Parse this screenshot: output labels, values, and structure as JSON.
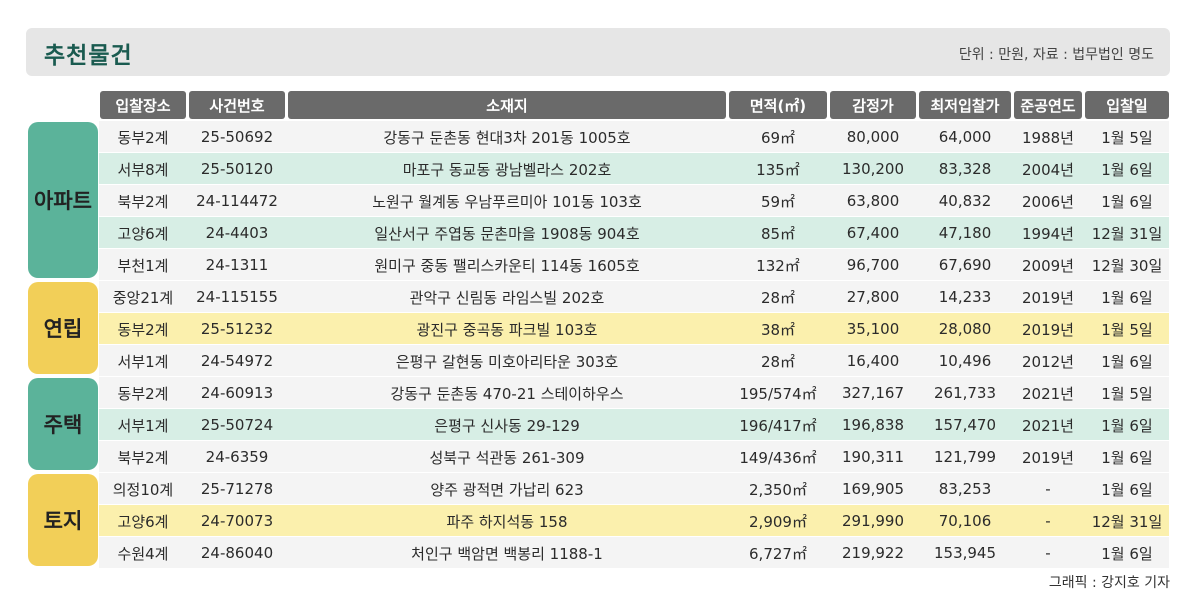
{
  "header": {
    "title": "추천물건",
    "unit_note": "단위 : 만원, 자료 : 법무법인 명도"
  },
  "columns": [
    "입찰장소",
    "사건번호",
    "소재지",
    "면적(㎡)",
    "감정가",
    "최저입찰가",
    "준공연도",
    "입찰일"
  ],
  "categories": [
    {
      "label": "아파트",
      "color": "#5bb39a"
    },
    {
      "label": "연립",
      "color": "#f2cf58"
    },
    {
      "label": "주택",
      "color": "#5bb39a"
    },
    {
      "label": "토지",
      "color": "#f2cf58"
    }
  ],
  "rows": [
    {
      "court": "동부2계",
      "case": "25-50692",
      "address": "강동구 둔촌동 현대3차 201동 1005호",
      "area": "69㎡",
      "appraisal": "80,000",
      "min_bid": "64,000",
      "year": "1988년",
      "date": "1월 5일"
    },
    {
      "court": "서부8계",
      "case": "25-50120",
      "address": "마포구 동교동 광남벨라스 202호",
      "area": "135㎡",
      "appraisal": "130,200",
      "min_bid": "83,328",
      "year": "2004년",
      "date": "1월 6일"
    },
    {
      "court": "북부2계",
      "case": "24-114472",
      "address": "노원구 월계동 우남푸르미아 101동 103호",
      "area": "59㎡",
      "appraisal": "63,800",
      "min_bid": "40,832",
      "year": "2006년",
      "date": "1월 6일"
    },
    {
      "court": "고양6계",
      "case": "24-4403",
      "address": "일산서구 주엽동 문촌마을 1908동 904호",
      "area": "85㎡",
      "appraisal": "67,400",
      "min_bid": "47,180",
      "year": "1994년",
      "date": "12월 31일"
    },
    {
      "court": "부천1계",
      "case": "24-1311",
      "address": "원미구 중동 팰리스카운티 114동 1605호",
      "area": "132㎡",
      "appraisal": "96,700",
      "min_bid": "67,690",
      "year": "2009년",
      "date": "12월 30일"
    },
    {
      "court": "중앙21계",
      "case": "24-115155",
      "address": "관악구 신림동 라임스빌 202호",
      "area": "28㎡",
      "appraisal": "27,800",
      "min_bid": "14,233",
      "year": "2019년",
      "date": "1월 6일"
    },
    {
      "court": "동부2계",
      "case": "25-51232",
      "address": "광진구 중곡동 파크빌 103호",
      "area": "38㎡",
      "appraisal": "35,100",
      "min_bid": "28,080",
      "year": "2019년",
      "date": "1월 5일"
    },
    {
      "court": "서부1계",
      "case": "24-54972",
      "address": "은평구 갈현동 미호아리타운 303호",
      "area": "28㎡",
      "appraisal": "16,400",
      "min_bid": "10,496",
      "year": "2012년",
      "date": "1월 6일"
    },
    {
      "court": "동부2계",
      "case": "24-60913",
      "address": "강동구 둔촌동 470-21 스테이하우스",
      "area": "195/574㎡",
      "appraisal": "327,167",
      "min_bid": "261,733",
      "year": "2021년",
      "date": "1월 5일"
    },
    {
      "court": "서부1계",
      "case": "25-50724",
      "address": "은평구 신사동 29-129",
      "area": "196/417㎡",
      "appraisal": "196,838",
      "min_bid": "157,470",
      "year": "2021년",
      "date": "1월 6일"
    },
    {
      "court": "북부2계",
      "case": "24-6359",
      "address": "성북구 석관동 261-309",
      "area": "149/436㎡",
      "appraisal": "190,311",
      "min_bid": "121,799",
      "year": "2019년",
      "date": "1월 6일"
    },
    {
      "court": "의정10계",
      "case": "25-71278",
      "address": "양주 광적면 가납리 623",
      "area": "2,350㎡",
      "appraisal": "169,905",
      "min_bid": "83,253",
      "year": "-",
      "date": "1월 6일"
    },
    {
      "court": "고양6계",
      "case": "24-70073",
      "address": "파주 하지석동 158",
      "area": "2,909㎡",
      "appraisal": "291,990",
      "min_bid": "70,106",
      "year": "-",
      "date": "12월 31일"
    },
    {
      "court": "수원4계",
      "case": "24-86040",
      "address": "처인구 백암면 백봉리 1188-1",
      "area": "6,727㎡",
      "appraisal": "219,922",
      "min_bid": "153,945",
      "year": "-",
      "date": "1월 6일"
    }
  ],
  "footer": {
    "credit": "그래픽 : 강지호 기자"
  }
}
